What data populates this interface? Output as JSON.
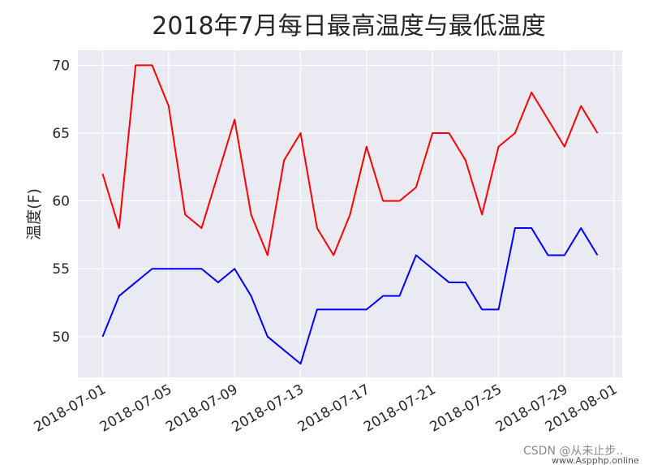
{
  "chart_data": {
    "type": "line",
    "title": "2018年7月每日最高温度与最低温度",
    "ylabel": "温度(F)",
    "x": [
      "2018-07-01",
      "2018-07-02",
      "2018-07-03",
      "2018-07-04",
      "2018-07-05",
      "2018-07-06",
      "2018-07-07",
      "2018-07-08",
      "2018-07-09",
      "2018-07-10",
      "2018-07-11",
      "2018-07-12",
      "2018-07-13",
      "2018-07-14",
      "2018-07-15",
      "2018-07-16",
      "2018-07-17",
      "2018-07-18",
      "2018-07-19",
      "2018-07-20",
      "2018-07-21",
      "2018-07-22",
      "2018-07-23",
      "2018-07-24",
      "2018-07-25",
      "2018-07-26",
      "2018-07-27",
      "2018-07-28",
      "2018-07-29",
      "2018-07-30",
      "2018-07-31"
    ],
    "series": [
      {
        "color": "#ff0000",
        "values": [
          62,
          58,
          70,
          70,
          67,
          59,
          58,
          62,
          66,
          59,
          56,
          63,
          65,
          58,
          56,
          59,
          64,
          60,
          60,
          61,
          65,
          65,
          63,
          59,
          64,
          65,
          68,
          66,
          64,
          67,
          65
        ]
      },
      {
        "color": "#0000ff",
        "values": [
          50,
          53,
          54,
          55,
          55,
          55,
          55,
          54,
          55,
          53,
          50,
          49,
          48,
          52,
          52,
          52,
          52,
          53,
          53,
          56,
          55,
          54,
          54,
          52,
          52,
          58,
          58,
          56,
          56,
          58,
          56
        ]
      }
    ],
    "xlim": [
      "2018-06-29T12:00",
      "2018-08-01T12:00"
    ],
    "xticks": [
      "2018-07-01",
      "2018-07-05",
      "2018-07-09",
      "2018-07-13",
      "2018-07-17",
      "2018-07-21",
      "2018-07-25",
      "2018-07-29",
      "2018-08-01"
    ],
    "ylim": [
      47,
      71.1
    ],
    "yticks": [
      50,
      55,
      60,
      65,
      70
    ],
    "grid": true,
    "background": "#eaeaf2",
    "watermark": "CSDN @从未止步..",
    "watermark_site": "www.Aspphp.online"
  }
}
